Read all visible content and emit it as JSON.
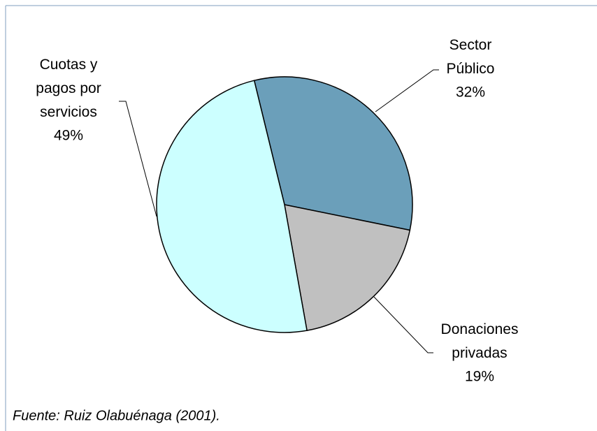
{
  "chart_data": {
    "type": "pie",
    "categories": [
      "Sector Público",
      "Donaciones privadas",
      "Cuotas y pagos por servicios"
    ],
    "values": [
      32,
      19,
      49
    ],
    "value_labels": [
      "32%",
      "19%",
      "49%"
    ],
    "colors": [
      "#6b9fba",
      "#c0c0c0",
      "#ccffff"
    ],
    "source": "Fuente: Ruiz Olabuénaga (2001)."
  }
}
